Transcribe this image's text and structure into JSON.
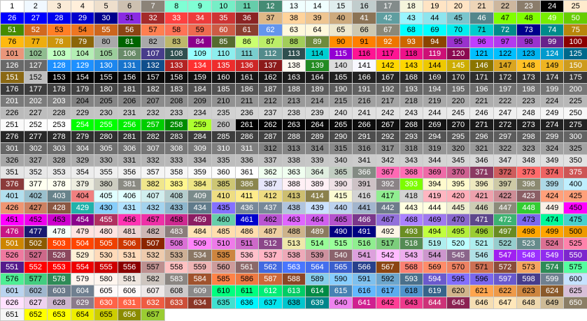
{
  "chart_data": {
    "type": "table",
    "description": "Color index chart: numbered swatches 1-657 arranged in 25 columns; each cell shows its index number over its color",
    "columns": 25,
    "row_count": 27,
    "first_cell_number": 1,
    "last_cell_number": 657,
    "background": "#FFFFFF",
    "grid_line_color": "#C9C9C9",
    "text_color_rule": {
      "white_if_rgb_sum_below": 382,
      "white_text_exceptions": [
        7,
        17,
        33,
        42,
        62,
        67,
        128,
        129,
        130,
        150,
        366,
        381,
        392,
        398,
        409,
        436,
        437,
        447,
        483,
        547,
        548,
        549,
        562,
        563,
        564,
        583,
        594,
        597,
        599,
        604,
        609,
        629,
        630,
        631,
        632,
        641
      ],
      "white": "#FFFFFF",
      "black": "#000000"
    },
    "rows": [
      [
        "#FFFFFF",
        "#F0F8FF",
        "#FAEBD7",
        "#FFEFDB",
        "#EEDFCC",
        "#CDC0B0",
        "#8B8378",
        "#7FFFD4",
        "#7FFFD4",
        "#76EEC6",
        "#66CDAA",
        "#458B74",
        "#F0FFFF",
        "#F0FFFF",
        "#E0EEEE",
        "#C1CDCD",
        "#838B8B",
        "#F5F5DC",
        "#FFE4C4",
        "#FFE4C4",
        "#EED5B7",
        "#CDB79E",
        "#8B7D6B",
        "#000000",
        "#FFEBCD"
      ],
      [
        "#0000FF",
        "#0000FF",
        "#0000EE",
        "#0000CD",
        "#00008B",
        "#8A2BE2",
        "#A52A2A",
        "#FF4040",
        "#EE3B3B",
        "#CD3333",
        "#8B2323",
        "#DEB887",
        "#FFD39B",
        "#EEC591",
        "#CDAA7D",
        "#8B7355",
        "#5F9EA0",
        "#98F5FF",
        "#8EE5EE",
        "#7AC5CD",
        "#53868B",
        "#7FFF00",
        "#7FFF00",
        "#76EE00",
        "#66CD00"
      ],
      [
        "#458B00",
        "#D2691E",
        "#FF7F24",
        "#EE7621",
        "#CD661D",
        "#8B4513",
        "#FF7F50",
        "#FF7256",
        "#EE6A50",
        "#CD5B45",
        "#8B3E2F",
        "#6495ED",
        "#FFF8DC",
        "#FFF8DC",
        "#EEE8CD",
        "#CDC8B1",
        "#8B8878",
        "#00FFFF",
        "#00FFFF",
        "#00EEEE",
        "#00CDCD",
        "#008B8B",
        "#00008B",
        "#008B8B",
        "#B8860B"
      ],
      [
        "#FFB90F",
        "#EEAD0E",
        "#CD950C",
        "#8B6508",
        "#A9A9A9",
        "#006400",
        "#A9A9A9",
        "#BDB76B",
        "#8B008B",
        "#556B2F",
        "#CAFF70",
        "#BCEE68",
        "#A2CD5A",
        "#6E8B3D",
        "#FF8C00",
        "#FF7F00",
        "#EE7600",
        "#CD6600",
        "#8B4500",
        "#9932CC",
        "#BF3EFF",
        "#B23AEE",
        "#9A32CD",
        "#68228B",
        "#8B0000"
      ],
      [
        "#E9967A",
        "#8FBC8F",
        "#C1FFC1",
        "#B4EEB4",
        "#9BCD9B",
        "#698B69",
        "#483D8B",
        "#2F4F4F",
        "#97FFFF",
        "#8DEEEE",
        "#79CDCD",
        "#528B8B",
        "#2F4F4F",
        "#00CED1",
        "#9400D3",
        "#FF1493",
        "#FF1493",
        "#EE1289",
        "#CD1076",
        "#8B0A50",
        "#00BFFF",
        "#00BFFF",
        "#00B2EE",
        "#009ACD",
        "#00688B"
      ],
      [
        "#696969",
        "#696969",
        "#1E90FF",
        "#1E90FF",
        "#1C86EE",
        "#1874CD",
        "#104E8B",
        "#B22222",
        "#FF3030",
        "#EE2C2C",
        "#CD2626",
        "#8B1A1A",
        "#FFFAF0",
        "#228B22",
        "#DCDCDC",
        "#F8F8FF",
        "#FFD700",
        "#FFD700",
        "#EEC900",
        "#CDAD00",
        "#8B7500",
        "#DAA520",
        "#FFC125",
        "#EEB422",
        "#CD9B1D"
      ],
      [
        "#8B6914",
        "#BEBEBE",
        "#000000",
        "#030303",
        "#050505",
        "#080808",
        "#0A0A0A",
        "#0D0D0D",
        "#0F0F0F",
        "#121212",
        "#141414",
        "#171717",
        "#1A1A1A",
        "#1C1C1C",
        "#1F1F1F",
        "#212121",
        "#242424",
        "#262626",
        "#292929",
        "#2B2B2B",
        "#2E2E2E",
        "#303030",
        "#333333",
        "#363636",
        "#383838"
      ],
      [
        "#3B3B3B",
        "#3D3D3D",
        "#404040",
        "#424242",
        "#454545",
        "#474747",
        "#4A4A4A",
        "#4D4D4D",
        "#4F4F4F",
        "#525252",
        "#545454",
        "#575757",
        "#595959",
        "#5C5C5C",
        "#5E5E5E",
        "#616161",
        "#636363",
        "#666666",
        "#696969",
        "#6B6B6B",
        "#6E6E6E",
        "#707070",
        "#737373",
        "#757575",
        "#787878"
      ],
      [
        "#7A7A7A",
        "#7D7D7D",
        "#7F7F7F",
        "#828282",
        "#858585",
        "#878787",
        "#8A8A8A",
        "#8C8C8C",
        "#8F8F8F",
        "#919191",
        "#949494",
        "#969696",
        "#999999",
        "#9C9C9C",
        "#9E9E9E",
        "#A1A1A1",
        "#A3A3A3",
        "#A6A6A6",
        "#A8A8A8",
        "#ABABAB",
        "#ADADAD",
        "#B0B0B0",
        "#B3B3B3",
        "#B5B5B5",
        "#B8B8B8"
      ],
      [
        "#BABABA",
        "#BDBDBD",
        "#BFBFBF",
        "#C2C2C2",
        "#C4C4C4",
        "#C7C7C7",
        "#C9C9C9",
        "#CCCCCC",
        "#CFCFCF",
        "#D1D1D1",
        "#D4D4D4",
        "#D6D6D6",
        "#D9D9D9",
        "#DBDBDB",
        "#DEDEDE",
        "#E0E0E0",
        "#E3E3E3",
        "#E5E5E5",
        "#E8E8E8",
        "#EBEBEB",
        "#EDEDED",
        "#F0F0F0",
        "#F2F2F2",
        "#F5F5F5",
        "#F7F7F7"
      ],
      [
        "#FAFAFA",
        "#FCFCFC",
        "#FFFFFF",
        "#00FF00",
        "#00FF00",
        "#00EE00",
        "#00CD00",
        "#008B00",
        "#ADFF2F",
        "#BEBEBE",
        "#000000",
        "#030303",
        "#050505",
        "#080808",
        "#0A0A0A",
        "#0D0D0D",
        "#0F0F0F",
        "#121212",
        "#141414",
        "#171717",
        "#1A1A1A",
        "#1C1C1C",
        "#1F1F1F",
        "#212121",
        "#242424"
      ],
      [
        "#262626",
        "#292929",
        "#2B2B2B",
        "#2E2E2E",
        "#303030",
        "#333333",
        "#363636",
        "#383838",
        "#3B3B3B",
        "#3D3D3D",
        "#404040",
        "#424242",
        "#454545",
        "#474747",
        "#4A4A4A",
        "#4D4D4D",
        "#4F4F4F",
        "#525252",
        "#545454",
        "#575757",
        "#595959",
        "#5C5C5C",
        "#5E5E5E",
        "#616161",
        "#636363"
      ],
      [
        "#666666",
        "#696969",
        "#6B6B6B",
        "#6E6E6E",
        "#707070",
        "#737373",
        "#757575",
        "#787878",
        "#7A7A7A",
        "#7D7D7D",
        "#7F7F7F",
        "#828282",
        "#858585",
        "#878787",
        "#8A8A8A",
        "#8C8C8C",
        "#8F8F8F",
        "#919191",
        "#949494",
        "#969696",
        "#999999",
        "#9C9C9C",
        "#9E9E9E",
        "#A1A1A1",
        "#A3A3A3"
      ],
      [
        "#A6A6A6",
        "#A8A8A8",
        "#ABABAB",
        "#ADADAD",
        "#B0B0B0",
        "#B3B3B3",
        "#B5B5B5",
        "#B8B8B8",
        "#BABABA",
        "#BDBDBD",
        "#BFBFBF",
        "#C2C2C2",
        "#C4C4C4",
        "#C7C7C7",
        "#C9C9C9",
        "#CCCCCC",
        "#CFCFCF",
        "#D1D1D1",
        "#D4D4D4",
        "#D6D6D6",
        "#D9D9D9",
        "#DBDBDB",
        "#DEDEDE",
        "#E0E0E0",
        "#E3E3E3"
      ],
      [
        "#E5E5E5",
        "#E8E8E8",
        "#EBEBEB",
        "#EDEDED",
        "#F0F0F0",
        "#F2F2F2",
        "#F5F5F5",
        "#F7F7F7",
        "#FAFAFA",
        "#FCFCFC",
        "#FFFFFF",
        "#F0FFF0",
        "#F0FFF0",
        "#E0EEE0",
        "#C1CDC1",
        "#838B83",
        "#FF69B4",
        "#FF6EB4",
        "#EE6AA7",
        "#CD6090",
        "#8B3A62",
        "#CD5C5C",
        "#FF6A6A",
        "#EE6363",
        "#CD5555"
      ],
      [
        "#8B3A3A",
        "#FFFFF0",
        "#FFFFF0",
        "#EEEEE0",
        "#CDCDC1",
        "#8B8B83",
        "#F0E68C",
        "#FFF68F",
        "#EEE685",
        "#CDC673",
        "#8B864E",
        "#E6E6FA",
        "#FFF0F5",
        "#FFF0F5",
        "#EEE0E5",
        "#CDC1C5",
        "#8B8386",
        "#7CFC00",
        "#FFFACD",
        "#FFFACD",
        "#EEE9BF",
        "#CDC9A5",
        "#8B8970",
        "#ADD8E6",
        "#BFEFFF"
      ],
      [
        "#B2DFEE",
        "#9AC0CD",
        "#68838B",
        "#F08080",
        "#E0FFFF",
        "#E0FFFF",
        "#D1EEEE",
        "#B4CDCD",
        "#7A8B8B",
        "#EEDD82",
        "#FFEC8B",
        "#EEDC82",
        "#CDBE70",
        "#8B814C",
        "#FAFAD2",
        "#D3D3D3",
        "#90EE90",
        "#D3D3D3",
        "#FFB6C1",
        "#FFAEB9",
        "#EEA2AD",
        "#CD8C95",
        "#8B5F65",
        "#FFA07A",
        "#FFA07A"
      ],
      [
        "#EE9572",
        "#CD8162",
        "#8B5742",
        "#20B2AA",
        "#87CEFA",
        "#B0E2FF",
        "#A4D3EE",
        "#8DB6CD",
        "#607B8B",
        "#8470FF",
        "#778899",
        "#778899",
        "#B0C4DE",
        "#CAE1FF",
        "#BCD2EE",
        "#A2B5CD",
        "#6E7B8B",
        "#FFFFE0",
        "#FFFFE0",
        "#EEEED1",
        "#CDCDB4",
        "#8B8B7A",
        "#32CD32",
        "#FAF0E6",
        "#FF00FF"
      ],
      [
        "#FF00FF",
        "#EE00EE",
        "#CD00CD",
        "#8B008B",
        "#B03060",
        "#FF34B3",
        "#EE30A7",
        "#CD2990",
        "#8B1C62",
        "#66CDAA",
        "#0000CD",
        "#BA55D3",
        "#E066FF",
        "#D15FEE",
        "#B452CD",
        "#7A378B",
        "#9370DB",
        "#AB82FF",
        "#9F79EE",
        "#8968CD",
        "#5D478B",
        "#3CB371",
        "#7B68EE",
        "#00FA9A",
        "#48D1CC"
      ],
      [
        "#C71585",
        "#191970",
        "#F5FFFA",
        "#FFE4E1",
        "#FFE4E1",
        "#EED5D2",
        "#CDB7B5",
        "#8B7D7B",
        "#FFE4B5",
        "#FFDEAD",
        "#FFDEAD",
        "#EECFA1",
        "#CDB38B",
        "#8B795E",
        "#000080",
        "#000080",
        "#FDF5E6",
        "#6B8E23",
        "#C0FF3E",
        "#B3EE3A",
        "#9ACD32",
        "#698B22",
        "#FFA500",
        "#FFA500",
        "#EE9A00"
      ],
      [
        "#CD8500",
        "#8B5A00",
        "#FF4500",
        "#FF4500",
        "#EE4000",
        "#CD3700",
        "#8B2500",
        "#DA70D6",
        "#FF83FA",
        "#EE7AE9",
        "#CD69C9",
        "#8B4789",
        "#EEE8AA",
        "#98FB98",
        "#9AFF9A",
        "#90EE90",
        "#7CCD7C",
        "#548B54",
        "#AFEEEE",
        "#BBFFFF",
        "#AEEEEE",
        "#96CDCD",
        "#668B8B",
        "#DB7093",
        "#FF82AB"
      ],
      [
        "#EE799F",
        "#CD6889",
        "#8B475D",
        "#FFEFD5",
        "#FFDAB9",
        "#FFDAB9",
        "#EECBAD",
        "#CDAF95",
        "#8B7765",
        "#CD853F",
        "#FFC0CB",
        "#FFB5C5",
        "#EEA9B8",
        "#CD919E",
        "#8B636C",
        "#DDA0DD",
        "#FFBBFF",
        "#EEAEEE",
        "#CD96CD",
        "#8B668B",
        "#B0E0E6",
        "#A020F0",
        "#9B30FF",
        "#912CEE",
        "#7D26CD"
      ],
      [
        "#551A8B",
        "#FF0000",
        "#FF0000",
        "#EE0000",
        "#CD0000",
        "#8B0000",
        "#BC8F8F",
        "#FFC1C1",
        "#EEB4B4",
        "#CD9B9B",
        "#8B6969",
        "#4169E1",
        "#4876FF",
        "#436EEE",
        "#3A5FCD",
        "#27408B",
        "#8B4513",
        "#FA8072",
        "#FF8C69",
        "#EE8262",
        "#CD7054",
        "#8B4C39",
        "#F4A460",
        "#2E8B57",
        "#54FF9F"
      ],
      [
        "#4EEE94",
        "#43CD80",
        "#2E8B57",
        "#FFF5EE",
        "#FFF5EE",
        "#EEE5DE",
        "#CDC5BF",
        "#8B8682",
        "#A0522D",
        "#FF8247",
        "#EE7942",
        "#CD6839",
        "#8B4726",
        "#87CEEB",
        "#87CEFF",
        "#7EC0EE",
        "#6CA6CD",
        "#4A708B",
        "#6A5ACD",
        "#836FFF",
        "#7A67EE",
        "#6959CD",
        "#473C8B",
        "#708090",
        "#C6E2FF"
      ],
      [
        "#B9D3EE",
        "#9FB6CD",
        "#6C7B8B",
        "#708090",
        "#FFFAFA",
        "#FFFAFA",
        "#EEE9E9",
        "#CDC9C9",
        "#8B8989",
        "#00FF7F",
        "#00FF7F",
        "#00EE76",
        "#00CD66",
        "#008B45",
        "#4682B4",
        "#63B8FF",
        "#5CACEE",
        "#4F94CD",
        "#36648B",
        "#D2B48C",
        "#FFA54F",
        "#EE9A49",
        "#CD853F",
        "#8B5A2B",
        "#D8BFD8"
      ],
      [
        "#FFE1FF",
        "#EED2EE",
        "#CDB5CD",
        "#8B7B8B",
        "#FF6347",
        "#FF6347",
        "#EE5C42",
        "#CD4F39",
        "#8B3626",
        "#40E0D0",
        "#00F5FF",
        "#00E5EE",
        "#00C5CD",
        "#00868B",
        "#EE82EE",
        "#D02090",
        "#FF3E96",
        "#EE3A8C",
        "#CD3278",
        "#8B2252",
        "#F5DEB3",
        "#FFE7BA",
        "#EED8AE",
        "#CDBA96",
        "#8B7E66"
      ],
      [
        "#F5F5F5",
        "#FFFF00",
        "#FFFF00",
        "#EEEE00",
        "#CDCD00",
        "#8B8B00",
        "#9ACD32"
      ]
    ]
  }
}
